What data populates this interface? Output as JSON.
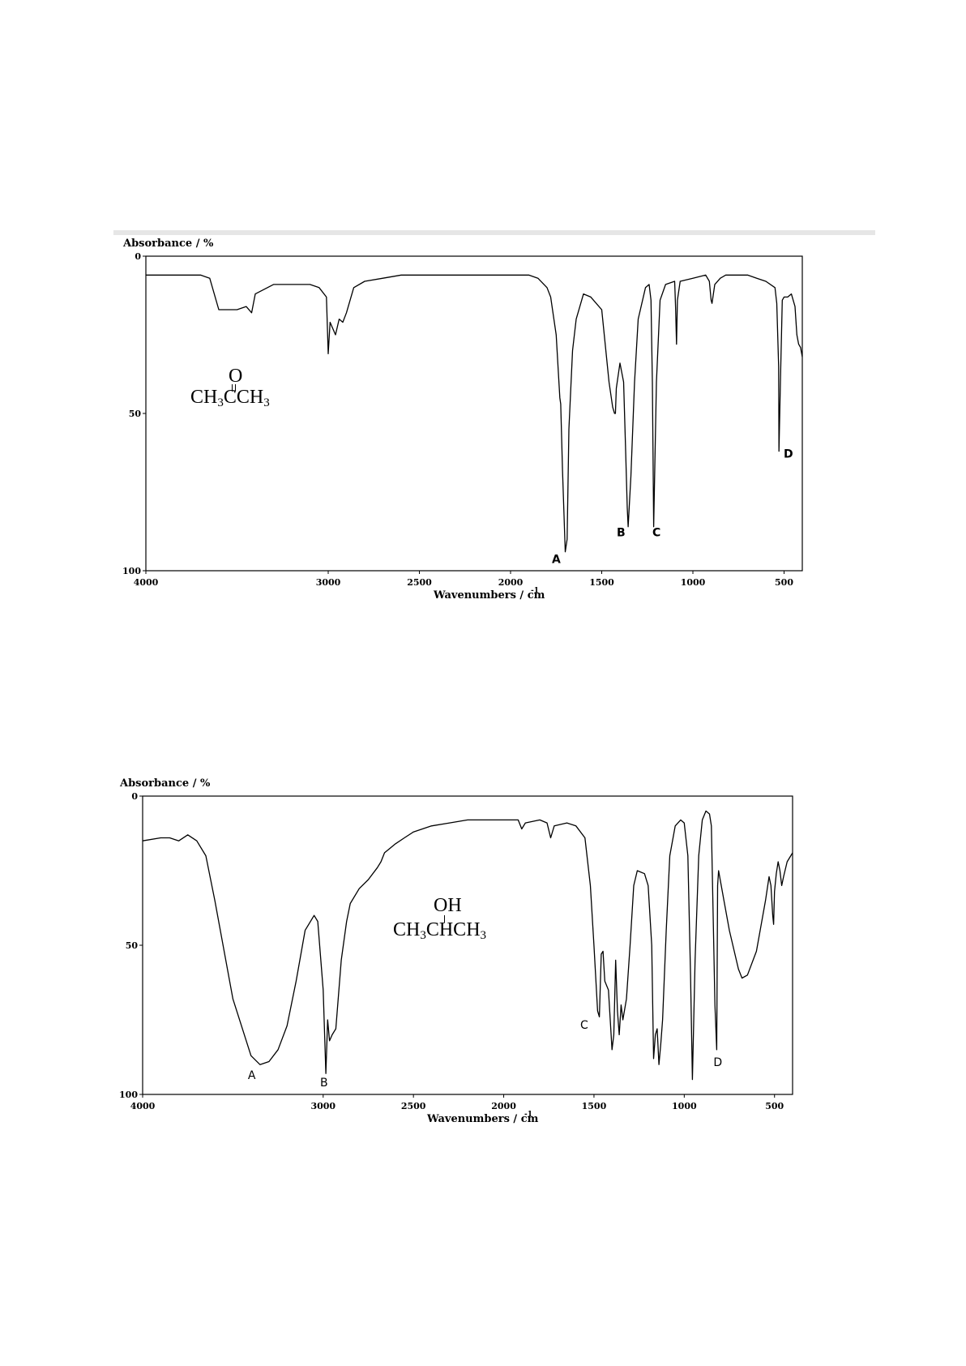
{
  "charts": [
    {
      "ylabel": "Absorbance / %",
      "xlabel": "Wavenumbers / cm",
      "xlabel_sup": "-1",
      "x_ticks": [
        "4000",
        "3000",
        "2500",
        "2000",
        "1500",
        "1000",
        "500"
      ],
      "y_ticks": [
        "0",
        "50",
        "100"
      ],
      "molecule": {
        "top": "O",
        "main": "CH",
        "sub1": "3",
        "mid": "CCH",
        "sub2": "3"
      },
      "peak_labels": [
        "A",
        "B",
        "C",
        "D"
      ]
    },
    {
      "ylabel": "Absorbance / %",
      "xlabel": "Wavenumbers / cm",
      "xlabel_sup": "-1",
      "x_ticks": [
        "4000",
        "3000",
        "2500",
        "2000",
        "1500",
        "1000",
        "500"
      ],
      "y_ticks": [
        "0",
        "50",
        "100"
      ],
      "molecule": {
        "top": "OH",
        "main": "CH",
        "sub1": "3",
        "mid": "CHCH",
        "sub2": "3"
      },
      "peak_labels": [
        "A",
        "B",
        "C",
        "D"
      ]
    }
  ],
  "chart_data": [
    {
      "type": "line",
      "title": "",
      "xlabel": "Wavenumbers / cm-1",
      "ylabel": "Absorbance / %",
      "xlim": [
        4000,
        400
      ],
      "ylim": [
        0,
        100
      ],
      "y_inverted": true,
      "grid": false,
      "series": [
        {
          "x": [
            4000,
            3900,
            3800,
            3700,
            3650,
            3600,
            3500,
            3450,
            3420,
            3400,
            3300,
            3200,
            3100,
            3050,
            3010,
            3000,
            2990,
            2960,
            2940,
            2920,
            2900,
            2860,
            2800,
            2700,
            2600,
            2500,
            2400,
            2200,
            2150,
            2100,
            2000,
            1900,
            1850,
            1800,
            1780,
            1750,
            1730,
            1725,
            1715,
            1700,
            1690,
            1680,
            1660,
            1640,
            1600,
            1560,
            1500,
            1460,
            1440,
            1430,
            1425,
            1420,
            1400,
            1380,
            1370,
            1360,
            1355,
            1340,
            1320,
            1300,
            1260,
            1240,
            1230,
            1222,
            1215,
            1200,
            1180,
            1150,
            1100,
            1095,
            1090,
            1085,
            1070,
            1000,
            930,
            910,
            900,
            895,
            880,
            850,
            820,
            800,
            780,
            700,
            650,
            600,
            550,
            540,
            530,
            528,
            520,
            510,
            500,
            480,
            460,
            440,
            430,
            420,
            410,
            400
          ],
          "y": [
            6,
            6,
            6,
            6,
            7,
            17,
            17,
            16,
            18,
            12,
            9,
            9,
            9,
            10,
            13,
            31,
            21,
            25,
            20,
            21,
            18,
            10,
            8,
            7,
            6,
            6,
            6,
            6,
            6,
            6,
            6,
            6,
            7,
            10,
            13,
            25,
            45,
            47,
            68,
            94,
            90,
            55,
            30,
            20,
            12,
            13,
            17,
            40,
            48,
            50,
            50,
            42,
            34,
            40,
            60,
            80,
            86,
            70,
            40,
            20,
            10,
            9,
            14,
            40,
            86,
            40,
            14,
            9,
            8,
            16,
            28,
            14,
            8,
            7,
            6,
            8,
            14,
            15,
            9,
            7,
            6,
            6,
            6,
            6,
            7,
            8,
            10,
            15,
            35,
            62,
            40,
            14,
            13,
            13,
            12,
            16,
            25,
            28,
            29,
            32
          ]
        }
      ]
    },
    {
      "type": "line",
      "title": "",
      "xlabel": "Wavenumbers / cm-1",
      "ylabel": "Absorbance / %",
      "xlim": [
        4000,
        400
      ],
      "ylim": [
        0,
        100
      ],
      "y_inverted": true,
      "grid": false,
      "series": [
        {
          "x": [
            4000,
            3900,
            3850,
            3800,
            3750,
            3700,
            3650,
            3600,
            3500,
            3400,
            3350,
            3300,
            3250,
            3200,
            3150,
            3100,
            3050,
            3030,
            3000,
            2985,
            2975,
            2965,
            2950,
            2930,
            2900,
            2870,
            2850,
            2800,
            2750,
            2700,
            2680,
            2660,
            2640,
            2600,
            2550,
            2500,
            2450,
            2400,
            2300,
            2200,
            2100,
            2000,
            1920,
            1900,
            1880,
            1800,
            1760,
            1740,
            1720,
            1650,
            1600,
            1550,
            1520,
            1500,
            1480,
            1470,
            1460,
            1450,
            1440,
            1420,
            1400,
            1390,
            1380,
            1370,
            1360,
            1350,
            1340,
            1320,
            1300,
            1280,
            1260,
            1220,
            1200,
            1180,
            1170,
            1160,
            1150,
            1140,
            1130,
            1120,
            1100,
            1080,
            1050,
            1020,
            1000,
            980,
            965,
            955,
            940,
            920,
            900,
            880,
            860,
            850,
            845,
            830,
            820,
            815,
            810,
            780,
            750,
            700,
            680,
            650,
            600,
            550,
            530,
            520,
            510,
            505,
            500,
            490,
            480,
            470,
            460,
            450,
            430,
            410,
            400
          ],
          "y": [
            15,
            14,
            14,
            15,
            13,
            15,
            20,
            35,
            68,
            87,
            90,
            89,
            85,
            77,
            62,
            45,
            40,
            42,
            65,
            93,
            75,
            82,
            80,
            78,
            55,
            42,
            36,
            31,
            28,
            24,
            22,
            19,
            18,
            16,
            14,
            12,
            11,
            10,
            9,
            8,
            8,
            8,
            8,
            11,
            9,
            8,
            9,
            14,
            10,
            9,
            10,
            14,
            30,
            50,
            72,
            74,
            53,
            52,
            62,
            65,
            85,
            80,
            55,
            72,
            80,
            70,
            75,
            68,
            50,
            30,
            25,
            26,
            30,
            50,
            88,
            80,
            78,
            90,
            83,
            75,
            45,
            20,
            10,
            8,
            9,
            20,
            60,
            95,
            55,
            20,
            8,
            5,
            6,
            10,
            25,
            70,
            85,
            30,
            25,
            35,
            45,
            58,
            61,
            60,
            52,
            35,
            27,
            30,
            40,
            43,
            32,
            26,
            22,
            25,
            30,
            27,
            22,
            20,
            19
          ]
        }
      ]
    }
  ]
}
